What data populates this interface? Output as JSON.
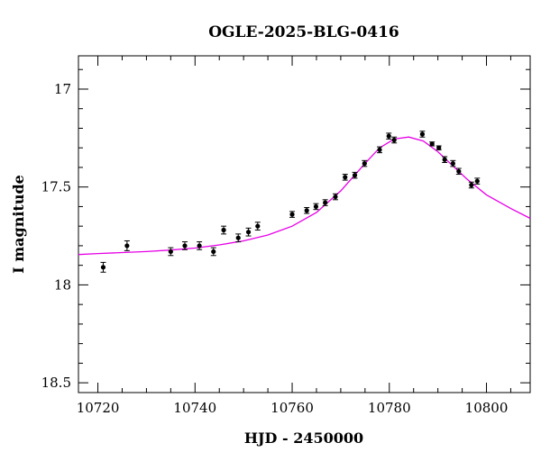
{
  "chart_data": {
    "type": "scatter",
    "title": "OGLE-2025-BLG-0416",
    "xlabel": "HJD - 2450000",
    "ylabel": "I magnitude",
    "xlim": [
      10716,
      10809
    ],
    "ylim": [
      18.55,
      16.83
    ],
    "y_inverted": true,
    "grid": false,
    "x_ticks": [
      10720,
      10740,
      10760,
      10780,
      10800
    ],
    "x_tick_labels": [
      "10720",
      "10740",
      "10760",
      "10780",
      "10800"
    ],
    "y_ticks": [
      17,
      17.5,
      18,
      18.5
    ],
    "y_tick_labels": [
      "17",
      "17.5",
      "18",
      "18.5"
    ],
    "colors": {
      "model": "#e600e6",
      "points": "#000000",
      "axes": "#000000"
    },
    "series": [
      {
        "kind": "points_with_errors",
        "x": [
          10721.1,
          10726.0,
          10735.0,
          10737.9,
          10740.9,
          10743.8,
          10745.9,
          10748.9,
          10751.0,
          10752.9,
          10760.0,
          10763.0,
          10764.9,
          10766.8,
          10768.9,
          10770.9,
          10772.9,
          10774.9,
          10778.0,
          10779.9,
          10781.0,
          10786.8,
          10788.8,
          10790.2,
          10791.4,
          10793.1,
          10794.3,
          10796.9,
          10798.1
        ],
        "y": [
          17.91,
          17.8,
          17.83,
          17.8,
          17.8,
          17.83,
          17.72,
          17.76,
          17.73,
          17.7,
          17.64,
          17.62,
          17.6,
          17.58,
          17.55,
          17.45,
          17.44,
          17.38,
          17.31,
          17.24,
          17.26,
          17.23,
          17.28,
          17.3,
          17.36,
          17.38,
          17.42,
          17.49,
          17.47
        ],
        "err": [
          0.025,
          0.025,
          0.02,
          0.02,
          0.02,
          0.02,
          0.02,
          0.02,
          0.02,
          0.02,
          0.015,
          0.015,
          0.015,
          0.015,
          0.015,
          0.015,
          0.015,
          0.015,
          0.015,
          0.015,
          0.015,
          0.015,
          0.01,
          0.01,
          0.015,
          0.015,
          0.015,
          0.015,
          0.015
        ]
      },
      {
        "kind": "model_curve",
        "x": [
          10716,
          10720,
          10725,
          10730,
          10735,
          10740,
          10745,
          10750,
          10755,
          10760,
          10765,
          10770,
          10775,
          10778,
          10781,
          10784,
          10787,
          10790,
          10793,
          10796,
          10800,
          10805,
          10809
        ],
        "y": [
          17.845,
          17.84,
          17.835,
          17.83,
          17.822,
          17.812,
          17.796,
          17.775,
          17.745,
          17.7,
          17.63,
          17.52,
          17.38,
          17.3,
          17.255,
          17.245,
          17.265,
          17.32,
          17.39,
          17.46,
          17.54,
          17.61,
          17.66
        ]
      }
    ]
  }
}
